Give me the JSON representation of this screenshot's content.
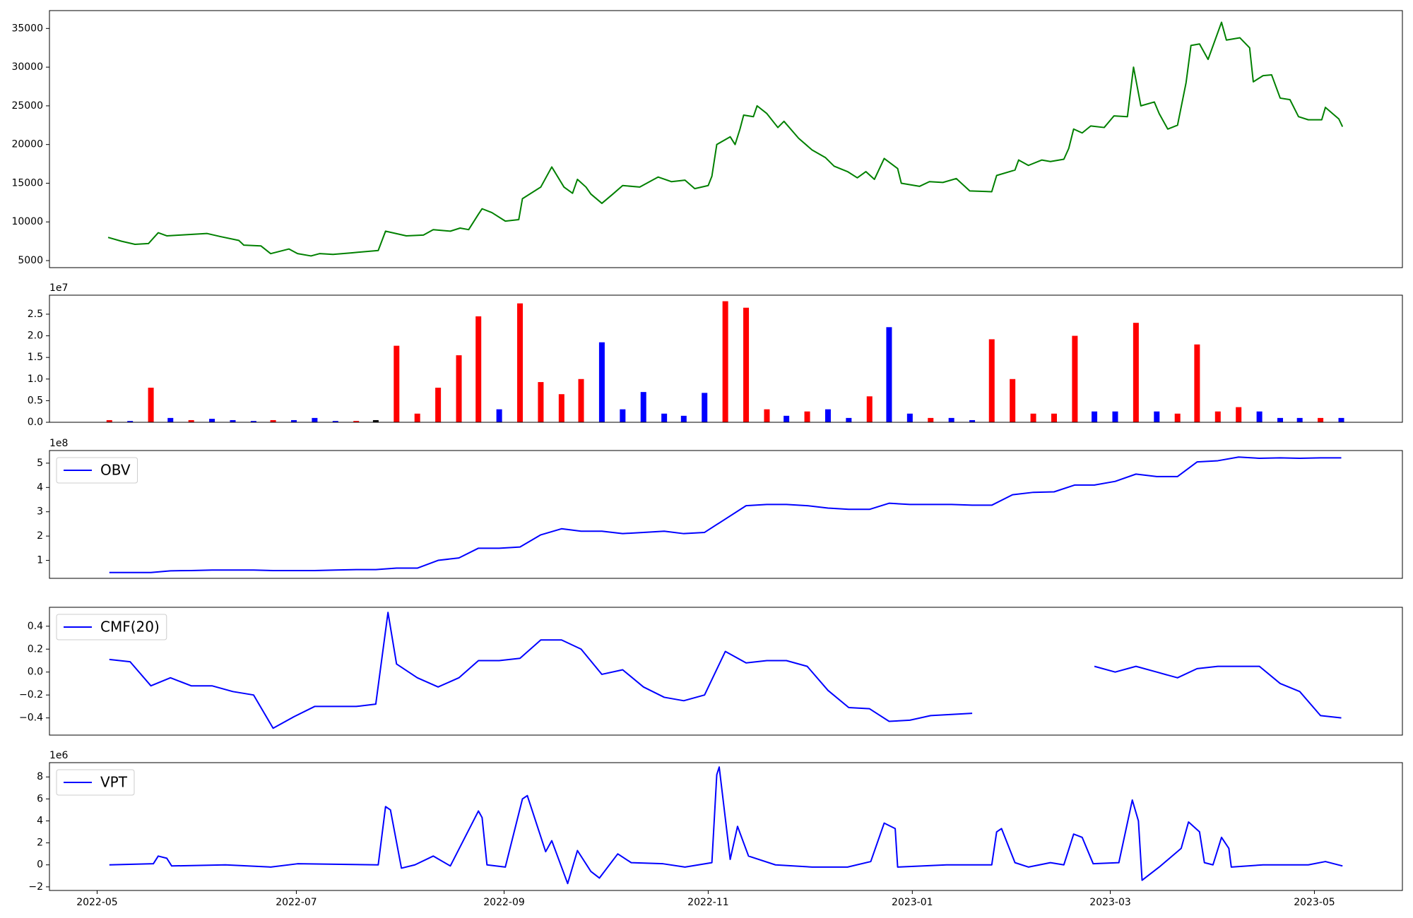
{
  "chart_data": [
    {
      "type": "line",
      "xlim": [
        2022.294,
        2023.401
      ],
      "ylim": [
        4090,
        37310
      ],
      "yticks": [
        5000,
        10000,
        15000,
        20000,
        25000,
        30000,
        35000
      ],
      "series": [
        {
          "color": "green",
          "x": [
            2022.342,
            2022.353,
            2022.364,
            2022.375,
            2022.383,
            2022.39,
            2022.401,
            2022.412,
            2022.423,
            2022.434,
            2022.449,
            2022.453,
            2022.467,
            2022.475,
            2022.49,
            2022.497,
            2022.508,
            2022.515,
            2022.526,
            2022.541,
            2022.563,
            2022.569,
            2022.586,
            2022.6,
            2022.608,
            2022.622,
            2022.63,
            2022.637,
            2022.645,
            2022.648,
            2022.656,
            2022.667,
            2022.678,
            2022.681,
            2022.696,
            2022.705,
            2022.715,
            2022.722,
            2022.726,
            2022.733,
            2022.737,
            2022.746,
            2022.755,
            2022.763,
            2022.777,
            2022.792,
            2022.803,
            2022.814,
            2022.822,
            2022.833,
            2022.836,
            2022.84,
            2022.851,
            2022.855,
            2022.859,
            2022.862,
            2022.87,
            2022.873,
            2022.881,
            2022.89,
            2022.895,
            2022.907,
            2022.918,
            2022.929,
            2022.936,
            2022.947,
            2022.955,
            2022.962,
            2022.969,
            2022.977,
            2022.988,
            2022.991,
            2023.006,
            2023.014,
            2023.025,
            2023.036,
            2023.047,
            2023.065,
            2023.069,
            2023.084,
            2023.087,
            2023.095,
            2023.106,
            2023.113,
            2023.124,
            2023.128,
            2023.132,
            2023.139,
            2023.146,
            2023.157,
            2023.165,
            2023.176,
            2023.181,
            2023.187,
            2023.198,
            2023.202,
            2023.209,
            2023.217,
            2023.224,
            2023.228,
            2023.235,
            2023.242,
            2023.253,
            2023.257,
            2023.268,
            2023.276,
            2023.279,
            2023.287,
            2023.294,
            2023.301,
            2023.309,
            2023.316,
            2023.324,
            2023.335,
            2023.338,
            2023.349,
            2023.352
          ],
          "values": [
            8000,
            7500,
            7100,
            7200,
            8600,
            8200,
            8300,
            8400,
            8500,
            8100,
            7600,
            7000,
            6900,
            5900,
            6500,
            5900,
            5600,
            5900,
            5800,
            6000,
            6300,
            8800,
            8200,
            8300,
            9000,
            8800,
            9200,
            9000,
            11000,
            11700,
            11200,
            10100,
            10300,
            13000,
            14500,
            17100,
            14500,
            13700,
            15500,
            14500,
            13600,
            12400,
            13600,
            14700,
            14500,
            15800,
            15200,
            15400,
            14300,
            14700,
            15900,
            20000,
            21000,
            20000,
            22000,
            23800,
            23600,
            25000,
            24000,
            22200,
            23000,
            20800,
            19300,
            18300,
            17200,
            16500,
            15700,
            16500,
            15500,
            18200,
            16900,
            15000,
            14600,
            15200,
            15100,
            15600,
            14000,
            13900,
            16000,
            16700,
            18000,
            17300,
            18000,
            17800,
            18100,
            19500,
            22000,
            21500,
            22400,
            22200,
            23700,
            23600,
            30000,
            25000,
            25500,
            24000,
            22000,
            22500,
            28000,
            32800,
            33000,
            31000,
            35800,
            33500,
            33800,
            32500,
            28100,
            28900,
            29000,
            26000,
            25800,
            23600,
            23200,
            23200,
            24800,
            23300,
            22300
          ]
        }
      ]
    },
    {
      "type": "bar",
      "xlim": [
        2022.294,
        2023.401
      ],
      "ylim": [
        0,
        2.94
      ],
      "y_offset_label": "1e7",
      "yticks": [
        {
          "value": 0,
          "label": "0.0"
        },
        0.5,
        {
          "value": 1,
          "label": "1.0"
        },
        1.5,
        {
          "value": 2,
          "label": "2.0"
        },
        2.5
      ],
      "x": [
        2022.343,
        2022.36,
        2022.377,
        2022.393,
        2022.41,
        2022.427,
        2022.444,
        2022.461,
        2022.477,
        2022.494,
        2022.511,
        2022.528,
        2022.545,
        2022.561,
        2022.578,
        2022.595,
        2022.612,
        2022.629,
        2022.645,
        2022.662,
        2022.679,
        2022.696,
        2022.713,
        2022.729,
        2022.746,
        2022.763,
        2022.78,
        2022.797,
        2022.813,
        2022.83,
        2022.847,
        2022.864,
        2022.881,
        2022.897,
        2022.914,
        2022.931,
        2022.948,
        2022.965,
        2022.981,
        2022.998,
        2023.015,
        2023.032,
        2023.049,
        2023.065,
        2023.082,
        2023.099,
        2023.116,
        2023.133,
        2023.149,
        2023.166,
        2023.183,
        2023.2,
        2023.217,
        2023.233,
        2023.25,
        2023.267,
        2023.284,
        2023.301,
        2023.317,
        2023.334,
        2023.351
      ],
      "values": [
        0.05,
        0.03,
        0.8,
        0.1,
        0.05,
        0.08,
        0.05,
        0.03,
        0.05,
        0.05,
        0.1,
        0.03,
        0.03,
        0.05,
        1.77,
        0.2,
        0.8,
        1.55,
        2.45,
        0.3,
        2.75,
        0.93,
        0.65,
        1.0,
        1.85,
        0.3,
        0.7,
        0.2,
        0.15,
        0.68,
        2.8,
        2.65,
        0.3,
        0.15,
        0.25,
        0.3,
        0.1,
        0.6,
        2.2,
        0.2,
        0.1,
        0.1,
        0.05,
        1.92,
        1.0,
        0.2,
        0.2,
        2.0,
        0.25,
        0.25,
        2.3,
        0.25,
        0.2,
        1.8,
        0.25,
        0.35,
        0.25,
        0.1,
        0.1,
        0.1,
        0.1
      ],
      "colors": [
        "red",
        "blue",
        "red",
        "blue",
        "red",
        "blue",
        "blue",
        "blue",
        "red",
        "blue",
        "blue",
        "blue",
        "red",
        "black",
        "red",
        "red",
        "red",
        "red",
        "red",
        "blue",
        "red",
        "red",
        "red",
        "red",
        "blue",
        "blue",
        "blue",
        "blue",
        "blue",
        "blue",
        "red",
        "red",
        "red",
        "blue",
        "red",
        "blue",
        "blue",
        "red",
        "blue",
        "blue",
        "red",
        "blue",
        "blue",
        "red",
        "red",
        "red",
        "red",
        "red",
        "blue",
        "blue",
        "red",
        "blue",
        "red",
        "red",
        "red",
        "red",
        "blue",
        "blue",
        "blue",
        "red",
        "blue"
      ]
    },
    {
      "type": "line",
      "xlim": [
        2022.294,
        2023.401
      ],
      "ylim": [
        0.26,
        5.52
      ],
      "y_offset_label": "1e8",
      "legend": "upper left",
      "yticks": [
        1,
        2,
        3,
        4,
        5
      ],
      "series": [
        {
          "name": "OBV",
          "color": "blue",
          "x": [
            2022.343,
            2022.36,
            2022.377,
            2022.393,
            2022.41,
            2022.427,
            2022.444,
            2022.461,
            2022.477,
            2022.494,
            2022.511,
            2022.528,
            2022.545,
            2022.561,
            2022.578,
            2022.595,
            2022.612,
            2022.629,
            2022.645,
            2022.662,
            2022.679,
            2022.696,
            2022.713,
            2022.729,
            2022.746,
            2022.763,
            2022.78,
            2022.797,
            2022.813,
            2022.83,
            2022.847,
            2022.864,
            2022.881,
            2022.897,
            2022.914,
            2022.931,
            2022.948,
            2022.965,
            2022.981,
            2022.998,
            2023.015,
            2023.032,
            2023.049,
            2023.065,
            2023.082,
            2023.099,
            2023.116,
            2023.133,
            2023.149,
            2023.166,
            2023.183,
            2023.2,
            2023.217,
            2023.233,
            2023.25,
            2023.267,
            2023.284,
            2023.301,
            2023.317,
            2023.334,
            2023.351
          ],
          "values": [
            0.5,
            0.5,
            0.5,
            0.57,
            0.58,
            0.6,
            0.6,
            0.6,
            0.58,
            0.58,
            0.58,
            0.6,
            0.62,
            0.62,
            0.68,
            0.68,
            1.0,
            1.1,
            1.5,
            1.5,
            1.55,
            2.05,
            2.3,
            2.2,
            2.2,
            2.1,
            2.15,
            2.2,
            2.1,
            2.15,
            2.7,
            3.25,
            3.3,
            3.3,
            3.25,
            3.15,
            3.1,
            3.1,
            3.35,
            3.3,
            3.3,
            3.3,
            3.27,
            3.27,
            3.7,
            3.8,
            3.82,
            4.1,
            4.1,
            4.25,
            4.55,
            4.45,
            4.45,
            5.05,
            5.1,
            5.25,
            5.2,
            5.22,
            5.2,
            5.22,
            5.22
          ]
        }
      ]
    },
    {
      "type": "line",
      "xlim": [
        2022.294,
        2023.401
      ],
      "ylim": [
        -0.55,
        0.565
      ],
      "legend": "upper left",
      "yticks": [
        {
          "value": -0.4,
          "label": "−0.4"
        },
        {
          "value": -0.2,
          "label": "−0.2"
        },
        {
          "value": 0,
          "label": "0.0"
        },
        0.2,
        0.4
      ],
      "series": [
        {
          "name": "CMF(20)",
          "color": "blue",
          "x": [
            2022.343,
            2022.36,
            2022.377,
            2022.393,
            2022.41,
            2022.427,
            2022.444,
            2022.461,
            2022.477,
            2022.494,
            2022.511,
            2022.528,
            2022.545,
            2022.561,
            2022.571,
            2022.578,
            2022.595,
            2022.612,
            2022.629,
            2022.645,
            2022.662,
            2022.679,
            2022.696,
            2022.713,
            2022.729,
            2022.746,
            2022.763,
            2022.78,
            2022.797,
            2022.813,
            2022.83,
            2022.847,
            2022.864,
            2022.881,
            2022.897,
            2022.914,
            2022.931,
            2022.948,
            2022.965,
            2022.981,
            2022.998,
            2023.015,
            2023.032,
            2023.049,
            2023.065,
            2023.082,
            2023.099,
            2023.116,
            2023.133,
            2023.149,
            2023.166,
            2023.183,
            2023.2,
            2023.217,
            2023.233,
            2023.25,
            2023.267,
            2023.284,
            2023.301,
            2023.317,
            2023.334,
            2023.351
          ],
          "values": [
            0.11,
            0.09,
            -0.12,
            -0.05,
            -0.12,
            -0.12,
            -0.17,
            -0.2,
            -0.49,
            -0.39,
            -0.3,
            -0.3,
            -0.3,
            -0.28,
            0.52,
            0.07,
            -0.05,
            -0.13,
            -0.05,
            0.1,
            0.1,
            0.12,
            0.28,
            0.28,
            0.2,
            -0.02,
            0.02,
            -0.13,
            -0.22,
            -0.25,
            -0.2,
            0.18,
            0.08,
            0.1,
            0.1,
            0.05,
            -0.16,
            -0.31,
            -0.32,
            -0.43,
            -0.42,
            -0.38,
            -0.37,
            -0.36,
            null,
            null,
            null,
            null,
            null,
            0.05,
            0.0,
            0.05,
            0.0,
            -0.05,
            0.03,
            0.05,
            0.05,
            0.05,
            -0.1,
            -0.17,
            -0.38,
            -0.4
          ]
        }
      ]
    },
    {
      "type": "line",
      "xlim": [
        2022.294,
        2023.401
      ],
      "ylim": [
        -2.33,
        9.3
      ],
      "y_offset_label": "1e6",
      "legend": "upper left",
      "yticks": [
        {
          "value": -2,
          "label": "−2"
        },
        0,
        2,
        4,
        6,
        8
      ],
      "xticks": [
        {
          "value": 2022.333,
          "label": "2022-05"
        },
        {
          "value": 2022.496,
          "label": "2022-07"
        },
        {
          "value": 2022.666,
          "label": "2022-09"
        },
        {
          "value": 2022.833,
          "label": "2022-11"
        },
        {
          "value": 2023.0,
          "label": "2023-01"
        },
        {
          "value": 2023.162,
          "label": "2023-03"
        },
        {
          "value": 2023.329,
          "label": "2023-05"
        }
      ],
      "series": [
        {
          "name": "VPT",
          "color": "blue",
          "x": [
            2022.343,
            2022.379,
            2022.383,
            2022.39,
            2022.394,
            2022.438,
            2022.475,
            2022.497,
            2022.563,
            2022.569,
            2022.573,
            2022.582,
            2022.593,
            2022.608,
            2022.622,
            2022.645,
            2022.648,
            2022.652,
            2022.667,
            2022.681,
            2022.685,
            2022.7,
            2022.705,
            2022.718,
            2022.726,
            2022.737,
            2022.744,
            2022.759,
            2022.77,
            2022.796,
            2022.814,
            2022.836,
            2022.84,
            2022.842,
            2022.851,
            2022.857,
            2022.866,
            2022.888,
            2022.918,
            2022.947,
            2022.966,
            2022.977,
            2022.986,
            2022.988,
            2023.028,
            2023.065,
            2023.069,
            2023.073,
            2023.084,
            2023.095,
            2023.113,
            2023.124,
            2023.132,
            2023.139,
            2023.148,
            2023.169,
            2023.18,
            2023.185,
            2023.188,
            2023.202,
            2023.22,
            2023.226,
            2023.235,
            2023.239,
            2023.246,
            2023.253,
            2023.259,
            2023.261,
            2023.287,
            2023.324,
            2023.338,
            2023.352
          ],
          "values": [
            0,
            0.1,
            0.8,
            0.6,
            -0.1,
            0,
            -0.2,
            0.1,
            0,
            5.3,
            5.0,
            -0.3,
            0,
            0.8,
            -0.1,
            4.9,
            4.3,
            0,
            -0.2,
            6.0,
            6.3,
            1.2,
            2.2,
            -1.7,
            1.3,
            -0.6,
            -1.2,
            1.0,
            0.2,
            0.1,
            -0.2,
            0.2,
            8.2,
            8.9,
            0.5,
            3.5,
            0.8,
            0,
            -0.2,
            -0.2,
            0.3,
            3.8,
            3.3,
            -0.2,
            0,
            0,
            3.0,
            3.3,
            0.2,
            -0.2,
            0.2,
            0,
            2.8,
            2.5,
            0.1,
            0.2,
            5.9,
            4.0,
            -1.4,
            -0.2,
            1.5,
            3.9,
            3.0,
            0.2,
            0,
            2.5,
            1.5,
            -0.2,
            0,
            0,
            0.3,
            -0.1
          ]
        }
      ]
    }
  ]
}
